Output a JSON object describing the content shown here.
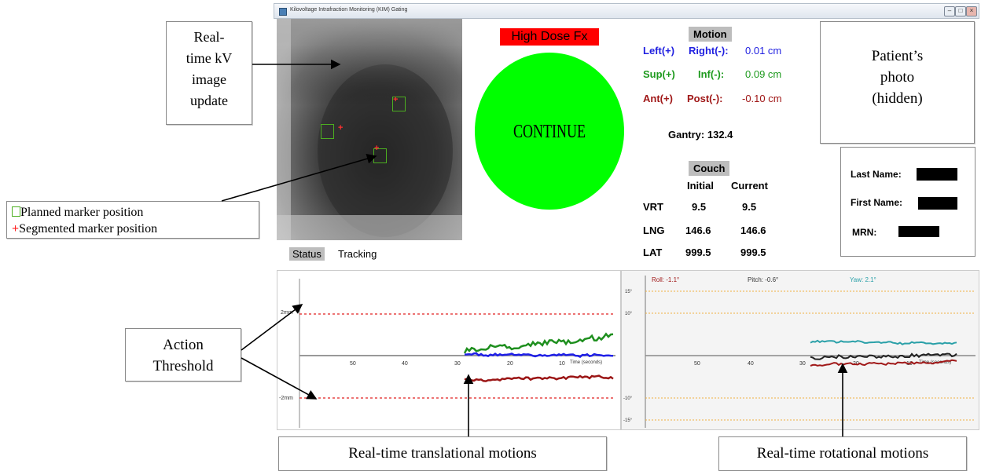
{
  "window": {
    "title": "Kilovoltage Intrafraction Monitoring (KIM) Gating"
  },
  "callouts": {
    "kv_image": [
      "Real-",
      "time kV",
      "image",
      "update"
    ],
    "marker_planned": "Planned marker position",
    "marker_segmented": "Segmented marker position",
    "patient_photo": [
      "Patient’s",
      "photo",
      "(hidden)"
    ],
    "action_threshold": [
      "Action",
      "Threshold"
    ],
    "translational": "Real-time translational motions",
    "rotational": "Real-time rotational motions"
  },
  "fraction_label": "High Dose Fx",
  "gating_state": "CONTINUE",
  "motion": {
    "header": "Motion",
    "rows": [
      {
        "a": "Left(+)",
        "b": "Right(-):",
        "value": "0.01 cm",
        "color": "#1f1fe0"
      },
      {
        "a": "Sup(+)",
        "b": "Inf(-):",
        "value": "0.09 cm",
        "color": "#1e9a1e"
      },
      {
        "a": "Ant(+)",
        "b": "Post(-):",
        "value": "-0.10 cm",
        "color": "#a01818"
      }
    ]
  },
  "gantry": {
    "label": "Gantry:",
    "value": "132.4"
  },
  "couch": {
    "header": "Couch",
    "col_initial": "Initial",
    "col_current": "Current",
    "rows": [
      {
        "axis": "VRT",
        "initial": "9.5",
        "current": "9.5"
      },
      {
        "axis": "LNG",
        "initial": "146.6",
        "current": "146.6"
      },
      {
        "axis": "LAT",
        "initial": "999.5",
        "current": "999.5"
      }
    ]
  },
  "patient": {
    "last_name_label": "Last Name:",
    "first_name_label": "First Name:",
    "mrn_label": "MRN:"
  },
  "status": {
    "label": "Status",
    "value": "Tracking"
  },
  "translation_plot": {
    "threshold_pos": "2mm",
    "threshold_neg": "-2mm",
    "ticks": [
      "50",
      "40",
      "30",
      "20",
      "10"
    ],
    "x_label": "Time (seconds)",
    "colors": {
      "lr": "#2020e8",
      "si": "#1e8f1e",
      "ap": "#9b1515",
      "threshold": "#e02020"
    }
  },
  "rotation_plot": {
    "roll": {
      "label": "Roll:",
      "value": "-1.1°",
      "color": "#a01818"
    },
    "pitch": {
      "label": "Pitch:",
      "value": "-0.6°",
      "color": "#333333"
    },
    "yaw": {
      "label": "Yaw:",
      "value": "2.1°",
      "color": "#2aa0a8"
    },
    "y_ticks": [
      "15°",
      "10°",
      "-10°",
      "-15°"
    ],
    "ticks": [
      "50",
      "40",
      "30",
      "20",
      "10"
    ],
    "x_label": "Time (seconds)"
  }
}
